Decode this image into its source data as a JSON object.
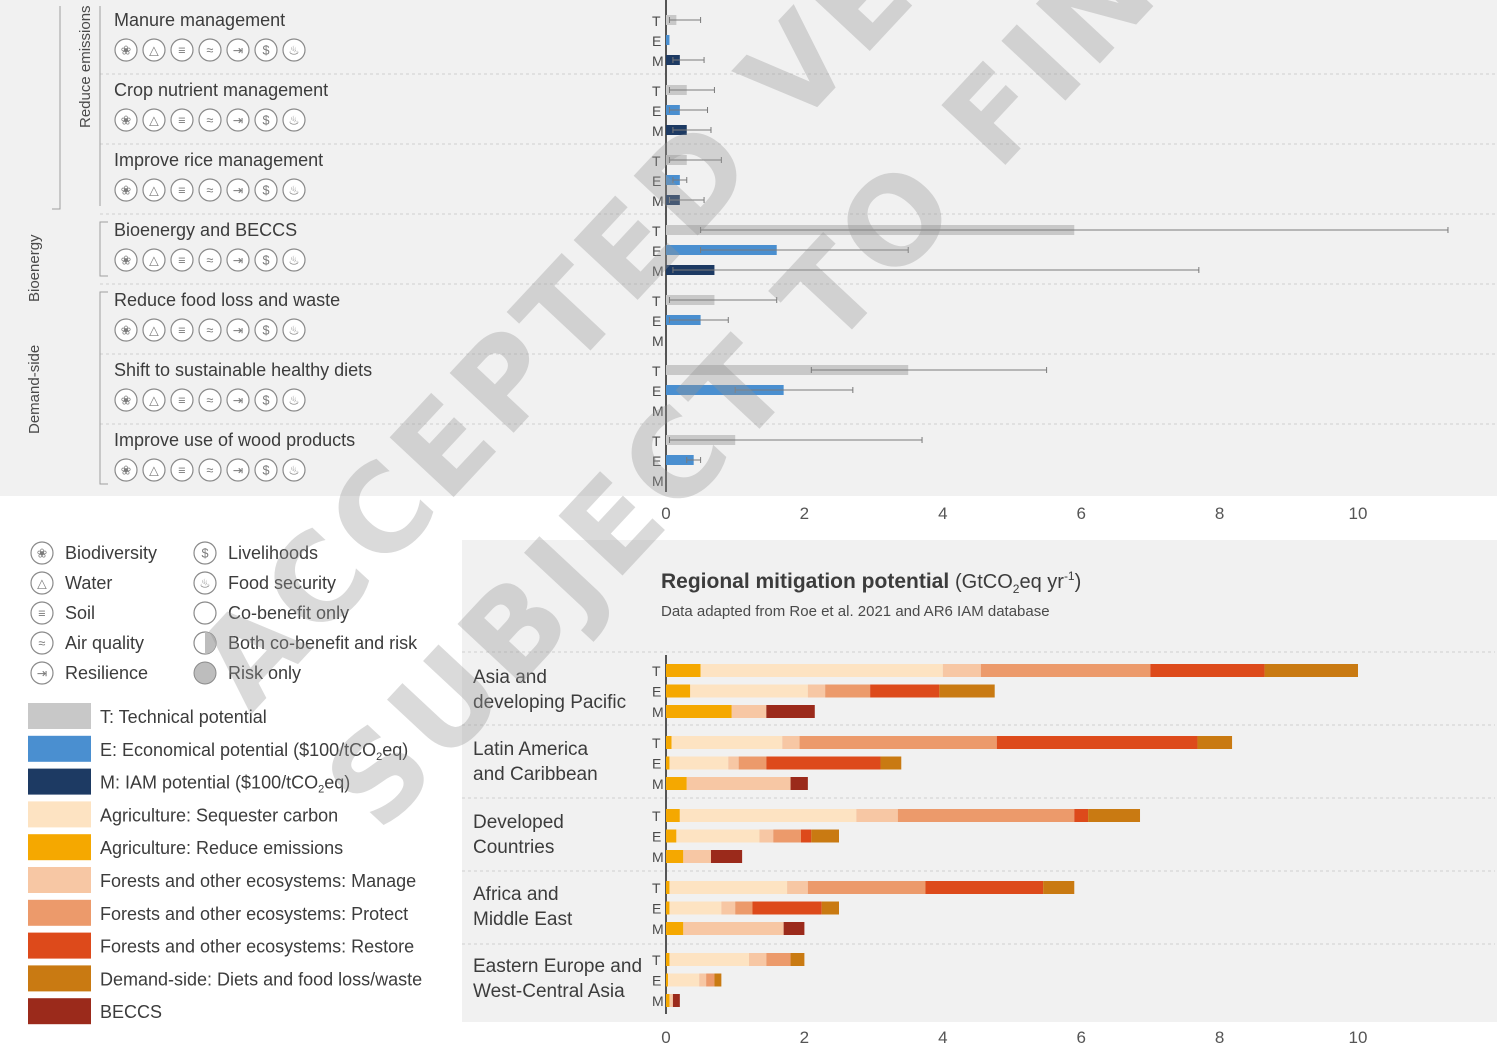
{
  "colors": {
    "panel_bg": "#f1f1f1",
    "technical": "#c8c8c8",
    "economic": "#4a8fd0",
    "iam": "#1d3a63",
    "ag_sequester": "#fde3c2",
    "ag_reduce": "#f5a800",
    "forest_manage": "#f7c7a4",
    "forest_protect": "#ec9a6b",
    "forest_restore": "#dd4a1b",
    "demand_side": "#c97a12",
    "beccs": "#9b2a1b"
  },
  "top_panel": {
    "group_labels": [
      "Reduce emissions",
      "Bioenergy",
      "Demand-side"
    ],
    "bar_letters": [
      "T",
      "E",
      "M"
    ],
    "rows": [
      {
        "label": "Manure management",
        "T": 0.15,
        "T_err": [
          0.05,
          0.5
        ],
        "E": 0.05,
        "E_err": null,
        "M": 0.2,
        "M_err": [
          0.1,
          0.55
        ],
        "icons": [
          "biodiversity-icon",
          "water-icon",
          "soil-icon",
          "air-quality-icon",
          "resilience-icon",
          "livelihoods-icon",
          "food-security-icon"
        ]
      },
      {
        "label": "Crop nutrient management",
        "T": 0.3,
        "T_err": [
          0.05,
          0.7
        ],
        "E": 0.2,
        "E_err": [
          0.05,
          0.6
        ],
        "M": 0.3,
        "M_err": [
          0.1,
          0.65
        ],
        "icons": [
          "biodiversity-icon",
          "water-icon",
          "soil-icon",
          "air-quality-icon",
          "resilience-icon",
          "livelihoods-icon",
          "food-security-icon"
        ]
      },
      {
        "label": "Improve rice management",
        "T": 0.3,
        "T_err": [
          0.05,
          0.8
        ],
        "E": 0.2,
        "E_err": [
          0.1,
          0.3
        ],
        "M": 0.2,
        "M_err": [
          0.05,
          0.55
        ],
        "icons": [
          "biodiversity-icon",
          "water-icon",
          "soil-icon",
          "air-quality-icon",
          "resilience-icon",
          "livelihoods-icon",
          "food-security-icon"
        ]
      },
      {
        "label": "Bioenergy and BECCS",
        "T": 5.9,
        "T_err": [
          0.5,
          11.3
        ],
        "E": 1.6,
        "E_err": [
          0.5,
          3.5
        ],
        "M": 0.7,
        "M_err": [
          0.1,
          7.7
        ],
        "icons": [
          "biodiversity-icon",
          "water-icon",
          "soil-icon",
          "air-quality-icon",
          "resilience-icon",
          "livelihoods-icon",
          "food-security-icon"
        ]
      },
      {
        "label": "Reduce food loss and waste",
        "T": 0.7,
        "T_err": [
          0.05,
          1.6
        ],
        "E": 0.5,
        "E_err": [
          0.05,
          0.9
        ],
        "M": null,
        "M_err": null,
        "icons": [
          "biodiversity-icon",
          "water-icon",
          "soil-icon",
          "air-quality-icon",
          "resilience-icon",
          "livelihoods-icon",
          "food-security-icon"
        ]
      },
      {
        "label": "Shift to sustainable healthy diets",
        "T": 3.5,
        "T_err": [
          2.1,
          5.5
        ],
        "E": 1.7,
        "E_err": [
          1.0,
          2.7
        ],
        "M": null,
        "M_err": null,
        "icons": [
          "biodiversity-icon",
          "water-icon",
          "soil-icon",
          "air-quality-icon",
          "resilience-icon",
          "livelihoods-icon",
          "food-security-icon"
        ]
      },
      {
        "label": "Improve use of wood products",
        "T": 1.0,
        "T_err": [
          0.05,
          3.7
        ],
        "E": 0.4,
        "E_err": [
          0.3,
          0.5
        ],
        "M": null,
        "M_err": null,
        "icons": [
          "biodiversity-icon",
          "water-icon",
          "soil-icon",
          "air-quality-icon",
          "resilience-icon",
          "livelihoods-icon",
          "food-security-icon"
        ]
      }
    ],
    "x_ticks": [
      "0",
      "2",
      "4",
      "6",
      "8",
      "10"
    ]
  },
  "legend": {
    "cobenefits": [
      {
        "icon": "biodiversity-icon",
        "label": "Biodiversity"
      },
      {
        "icon": "water-icon",
        "label": "Water"
      },
      {
        "icon": "soil-icon",
        "label": "Soil"
      },
      {
        "icon": "air-quality-icon",
        "label": "Air quality"
      },
      {
        "icon": "resilience-icon",
        "label": "Resilience"
      }
    ],
    "cobenefits2": [
      {
        "icon": "livelihoods-icon",
        "label": "Livelihoods"
      },
      {
        "icon": "food-security-icon",
        "label": "Food security"
      },
      {
        "icon": "co-benefit-only-icon",
        "label": "Co-benefit only"
      },
      {
        "icon": "both-co-benefit-and-risk-icon",
        "label": "Both co-benefit and risk"
      },
      {
        "icon": "risk-only-icon",
        "label": "Risk only"
      }
    ],
    "swatches": [
      {
        "color": "#c8c8c8",
        "label": "T: Technical potential"
      },
      {
        "color": "#4a8fd0",
        "label": "E: Economical potential ($100/tCO2eq)"
      },
      {
        "color": "#1d3a63",
        "label": "M: IAM potential ($100/tCO2eq)"
      },
      {
        "color": "#fde3c2",
        "label": "Agriculture: Sequester carbon"
      },
      {
        "color": "#f5a800",
        "label": "Agriculture: Reduce emissions"
      },
      {
        "color": "#f7c7a4",
        "label": "Forests and other ecosystems: Manage"
      },
      {
        "color": "#ec9a6b",
        "label": "Forests and other ecosystems: Protect"
      },
      {
        "color": "#dd4a1b",
        "label": "Forests and other ecosystems: Restore"
      },
      {
        "color": "#c97a12",
        "label": "Demand-side: Diets and food loss/waste"
      },
      {
        "color": "#9b2a1b",
        "label": "BECCS"
      }
    ]
  },
  "chart_data": {
    "type": "bar",
    "title": "Regional mitigation potential",
    "title_unit": "(GtCO2eq yr-1)",
    "subtitle": "Data adapted from Roe et al. 2021 and AR6 IAM database",
    "orientation": "horizontal stacked",
    "xlim": [
      0,
      11.4
    ],
    "x_ticks": [
      "0",
      "2",
      "4",
      "6",
      "8",
      "10"
    ],
    "grid": false,
    "components": [
      "Agriculture: Sequester carbon-reduce",
      "Agriculture: Sequester carbon",
      "Forests and other ecosystems: Manage",
      "Forests and other ecosystems: Protect",
      "Forests and other ecosystems: Restore",
      "Demand-side: Diets and food loss/waste",
      "BECCS"
    ],
    "regions": [
      {
        "name": "Asia and developing Pacific",
        "T": [
          [
            "ag_reduce",
            0.5
          ],
          [
            "ag_sequester",
            3.5
          ],
          [
            "forest_manage",
            0.55
          ],
          [
            "forest_protect",
            2.45
          ],
          [
            "forest_restore",
            1.65
          ],
          [
            "demand_side",
            1.35
          ]
        ],
        "E": [
          [
            "ag_reduce",
            0.35
          ],
          [
            "ag_sequester",
            1.7
          ],
          [
            "forest_manage",
            0.25
          ],
          [
            "forest_protect",
            0.65
          ],
          [
            "forest_restore",
            1.0
          ],
          [
            "demand_side",
            0.8
          ]
        ],
        "M": [
          [
            "ag_reduce",
            0.95
          ],
          [
            "forest_manage",
            0.5
          ],
          [
            "beccs",
            0.7
          ]
        ]
      },
      {
        "name": "Latin America and Caribbean",
        "T": [
          [
            "ag_reduce",
            0.08
          ],
          [
            "ag_sequester",
            1.6
          ],
          [
            "forest_manage",
            0.25
          ],
          [
            "forest_protect",
            2.85
          ],
          [
            "forest_restore",
            2.9
          ],
          [
            "demand_side",
            0.5
          ]
        ],
        "E": [
          [
            "ag_reduce",
            0.05
          ],
          [
            "ag_sequester",
            0.85
          ],
          [
            "forest_manage",
            0.15
          ],
          [
            "forest_protect",
            0.4
          ],
          [
            "forest_restore",
            1.65
          ],
          [
            "demand_side",
            0.3
          ]
        ],
        "M": [
          [
            "ag_reduce",
            0.3
          ],
          [
            "forest_manage",
            1.5
          ],
          [
            "beccs",
            0.25
          ]
        ]
      },
      {
        "name": "Developed Countries",
        "T": [
          [
            "ag_reduce",
            0.2
          ],
          [
            "ag_sequester",
            2.55
          ],
          [
            "forest_manage",
            0.6
          ],
          [
            "forest_protect",
            2.55
          ],
          [
            "forest_restore",
            0.2
          ],
          [
            "demand_side",
            0.75
          ]
        ],
        "E": [
          [
            "ag_reduce",
            0.15
          ],
          [
            "ag_sequester",
            1.2
          ],
          [
            "forest_manage",
            0.2
          ],
          [
            "forest_protect",
            0.4
          ],
          [
            "forest_restore",
            0.15
          ],
          [
            "demand_side",
            0.4
          ]
        ],
        "M": [
          [
            "ag_reduce",
            0.25
          ],
          [
            "forest_manage",
            0.4
          ],
          [
            "beccs",
            0.45
          ]
        ]
      },
      {
        "name": "Africa and Middle East",
        "T": [
          [
            "ag_reduce",
            0.05
          ],
          [
            "ag_sequester",
            1.7
          ],
          [
            "forest_manage",
            0.3
          ],
          [
            "forest_protect",
            1.7
          ],
          [
            "forest_restore",
            1.7
          ],
          [
            "demand_side",
            0.45
          ]
        ],
        "E": [
          [
            "ag_reduce",
            0.05
          ],
          [
            "ag_sequester",
            0.75
          ],
          [
            "forest_manage",
            0.2
          ],
          [
            "forest_protect",
            0.25
          ],
          [
            "forest_restore",
            1.0
          ],
          [
            "demand_side",
            0.25
          ]
        ],
        "M": [
          [
            "ag_reduce",
            0.25
          ],
          [
            "forest_manage",
            1.45
          ],
          [
            "beccs",
            0.3
          ]
        ]
      },
      {
        "name": "Eastern Europe and West-Central Asia",
        "T": [
          [
            "ag_reduce",
            0.05
          ],
          [
            "ag_sequester",
            1.15
          ],
          [
            "forest_manage",
            0.25
          ],
          [
            "forest_protect",
            0.35
          ],
          [
            "forest_restore",
            0.0
          ],
          [
            "demand_side",
            0.2
          ]
        ],
        "E": [
          [
            "ag_reduce",
            0.03
          ],
          [
            "ag_sequester",
            0.45
          ],
          [
            "forest_manage",
            0.1
          ],
          [
            "forest_protect",
            0.12
          ],
          [
            "forest_restore",
            0.0
          ],
          [
            "demand_side",
            0.1
          ]
        ],
        "M": [
          [
            "ag_reduce",
            0.05
          ],
          [
            "forest_manage",
            0.05
          ],
          [
            "beccs",
            0.1
          ]
        ]
      }
    ]
  },
  "region_display": [
    [
      "Asia and",
      "developing Pacific"
    ],
    [
      "Latin America",
      "and Caribbean"
    ],
    [
      "Developed",
      "Countries"
    ],
    [
      "Africa and",
      "Middle East"
    ],
    [
      "Eastern Europe and",
      "West-Central Asia"
    ]
  ],
  "watermark": [
    "ACCEPTED VERSION",
    "SUBJECT TO FINAL EDITS"
  ]
}
